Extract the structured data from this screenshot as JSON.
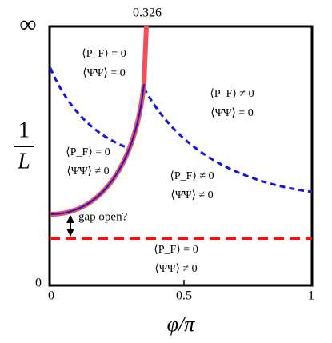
{
  "axes": {
    "x_label": "φ/π",
    "x_ticks": [
      "0",
      "0.5",
      "1"
    ],
    "y_label_num": "1",
    "y_label_den": "L",
    "y_top": "∞",
    "y_bottom": "0",
    "top_mark": "0.326"
  },
  "regions": [
    {
      "pf": "⟨P_F⟩ = 0",
      "psi": "⟨Ψ̄Ψ⟩ = 0"
    },
    {
      "pf": "⟨P_F⟩ ≠ 0",
      "psi": "⟨Ψ̄Ψ⟩ = 0"
    },
    {
      "pf": "⟨P_F⟩ = 0",
      "psi": "⟨Ψ̄Ψ⟩ ≠ 0"
    },
    {
      "pf": "⟨P_F⟩ ≠ 0",
      "psi": "⟨Ψ̄Ψ⟩ ≠ 0"
    },
    {
      "pf": "⟨P_F⟩ = 0",
      "psi": "⟨Ψ̄Ψ⟩ ≠ 0"
    }
  ],
  "annotation": "gap open?"
}
